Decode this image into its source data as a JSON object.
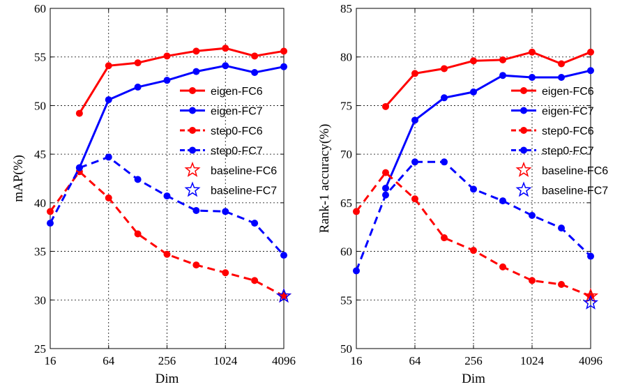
{
  "chart_data": [
    {
      "type": "line",
      "xlabel": "Dim",
      "ylabel": "mAP(%)",
      "xscale": "log2",
      "xlim": [
        16,
        4096
      ],
      "ylim": [
        25,
        60
      ],
      "xticks": [
        16,
        64,
        256,
        1024,
        4096
      ],
      "xtick_labels": [
        "16",
        "64",
        "256",
        "1024",
        "4096"
      ],
      "yticks": [
        25,
        30,
        35,
        40,
        45,
        50,
        55,
        60
      ],
      "ytick_labels": [
        "25",
        "30",
        "35",
        "40",
        "45",
        "50",
        "55",
        "60"
      ],
      "grid": true,
      "legend_position": "right",
      "series": [
        {
          "name": "eigen-FC6",
          "color": "#ff0000",
          "style": "solid",
          "marker": "circle",
          "x": [
            32,
            64,
            128,
            256,
            512,
            1024,
            2048,
            4096
          ],
          "values": [
            49.2,
            54.1,
            54.4,
            55.1,
            55.6,
            55.9,
            55.1,
            55.6
          ]
        },
        {
          "name": "eigen-FC7",
          "color": "#0000ff",
          "style": "solid",
          "marker": "circle",
          "x": [
            32,
            64,
            128,
            256,
            512,
            1024,
            2048,
            4096
          ],
          "values": [
            43.6,
            50.6,
            51.9,
            52.6,
            53.5,
            54.1,
            53.4,
            54.0
          ]
        },
        {
          "name": "step0-FC6",
          "color": "#ff0000",
          "style": "dashed",
          "marker": "circle",
          "x": [
            16,
            32,
            64,
            128,
            256,
            512,
            1024,
            2048,
            4096
          ],
          "values": [
            39.1,
            43.2,
            40.5,
            36.8,
            34.7,
            33.6,
            32.8,
            32.0,
            30.4
          ]
        },
        {
          "name": "step0-FC7",
          "color": "#0000ff",
          "style": "dashed",
          "marker": "circle",
          "x": [
            16,
            32,
            64,
            128,
            256,
            512,
            1024,
            2048,
            4096
          ],
          "values": [
            37.9,
            43.6,
            44.7,
            42.4,
            40.7,
            39.2,
            39.1,
            37.9,
            34.6
          ]
        },
        {
          "name": "baseline-FC6",
          "color": "#ff0000",
          "style": "none",
          "marker": "star",
          "x": [
            4096
          ],
          "values": [
            30.4
          ]
        },
        {
          "name": "baseline-FC7",
          "color": "#0000ff",
          "style": "none",
          "marker": "star",
          "x": [
            4096
          ],
          "values": [
            30.4
          ]
        }
      ]
    },
    {
      "type": "line",
      "xlabel": "Dim",
      "ylabel": "Rank-1 accuracy(%)",
      "xscale": "log2",
      "xlim": [
        16,
        4096
      ],
      "ylim": [
        50,
        85
      ],
      "xticks": [
        16,
        64,
        256,
        1024,
        4096
      ],
      "xtick_labels": [
        "16",
        "64",
        "256",
        "1024",
        "4096"
      ],
      "yticks": [
        50,
        55,
        60,
        65,
        70,
        75,
        80,
        85
      ],
      "ytick_labels": [
        "50",
        "55",
        "60",
        "65",
        "70",
        "75",
        "80",
        "85"
      ],
      "grid": true,
      "legend_position": "right",
      "series": [
        {
          "name": "eigen-FC6",
          "color": "#ff0000",
          "style": "solid",
          "marker": "circle",
          "x": [
            32,
            64,
            128,
            256,
            512,
            1024,
            2048,
            4096
          ],
          "values": [
            74.9,
            78.3,
            78.8,
            79.6,
            79.7,
            80.5,
            79.3,
            80.5
          ]
        },
        {
          "name": "eigen-FC7",
          "color": "#0000ff",
          "style": "solid",
          "marker": "circle",
          "x": [
            32,
            64,
            128,
            256,
            512,
            1024,
            2048,
            4096
          ],
          "values": [
            66.5,
            73.5,
            75.8,
            76.4,
            78.1,
            77.9,
            77.9,
            78.6
          ]
        },
        {
          "name": "step0-FC6",
          "color": "#ff0000",
          "style": "dashed",
          "marker": "circle",
          "x": [
            16,
            32,
            64,
            128,
            256,
            512,
            1024,
            2048,
            4096
          ],
          "values": [
            64.1,
            68.1,
            65.4,
            61.4,
            60.1,
            58.4,
            57.0,
            56.6,
            55.4
          ]
        },
        {
          "name": "step0-FC7",
          "color": "#0000ff",
          "style": "dashed",
          "marker": "circle",
          "x": [
            16,
            32,
            64,
            128,
            256,
            512,
            1024,
            2048,
            4096
          ],
          "values": [
            58.0,
            65.8,
            69.2,
            69.2,
            66.4,
            65.2,
            63.7,
            62.4,
            59.5
          ]
        },
        {
          "name": "baseline-FC6",
          "color": "#ff0000",
          "style": "none",
          "marker": "star",
          "x": [
            4096
          ],
          "values": [
            55.4
          ]
        },
        {
          "name": "baseline-FC7",
          "color": "#0000ff",
          "style": "none",
          "marker": "star",
          "x": [
            4096
          ],
          "values": [
            54.7
          ]
        }
      ]
    }
  ]
}
